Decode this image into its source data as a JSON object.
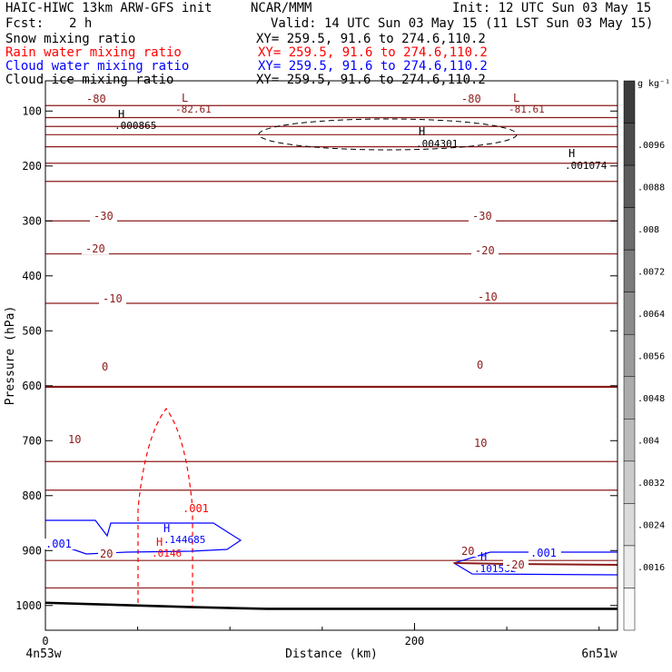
{
  "header": {
    "model": "HAIC-HIWC 13km ARW-GFS init",
    "org": "NCAR/MMM",
    "init": "Init: 12 UTC Sun 03 May 15",
    "fcst_label": "Fcst:",
    "fcst_value": "2 h",
    "valid": "Valid: 14 UTC Sun 03 May 15 (11 LST Sun 03 May 15)"
  },
  "fields": [
    {
      "name": "Snow mixing ratio",
      "xy": "XY= 259.5, 91.6 to 274.6,110.2",
      "color": "#000000"
    },
    {
      "name": "Rain water mixing ratio",
      "xy": "XY= 259.5, 91.6 to 274.6,110.2",
      "color": "#ff0000"
    },
    {
      "name": "Cloud water mixing ratio",
      "xy": "XY= 259.5, 91.6 to 274.6,110.2",
      "color": "#0000ff"
    },
    {
      "name": "Cloud ice mixing ratio",
      "xy": "XY= 259.5, 91.6 to 274.6,110.2",
      "color": "#000000"
    }
  ],
  "colors": {
    "temperature": "#8b1a1a",
    "rain": "#ff0000",
    "cloud_water": "#0000ff",
    "ground": "#000000"
  },
  "chart_data": {
    "type": "cross-section",
    "xlabel": "Distance (km)",
    "ylabel": "Pressure (hPa)",
    "xlim": [
      0,
      310
    ],
    "ylim": [
      1045,
      45
    ],
    "x_ticks": [
      {
        "v": 0,
        "label": "0"
      },
      {
        "v": 200,
        "label": "200"
      }
    ],
    "y_ticks": [
      {
        "v": 100,
        "label": "100"
      },
      {
        "v": 200,
        "label": "200"
      },
      {
        "v": 300,
        "label": "300"
      },
      {
        "v": 400,
        "label": "400"
      },
      {
        "v": 500,
        "label": "500"
      },
      {
        "v": 600,
        "label": "600"
      },
      {
        "v": 700,
        "label": "700"
      },
      {
        "v": 800,
        "label": "800"
      },
      {
        "v": 900,
        "label": "900"
      },
      {
        "v": 1000,
        "label": "1000"
      }
    ],
    "endpoints": {
      "left": "4n53w",
      "right": "6n51w"
    },
    "colorbar": {
      "unit": "g kg⁻¹",
      "labels": [
        ".0096",
        ".0088",
        ".008",
        ".0072",
        ".0064",
        ".0056",
        ".0048",
        ".004",
        ".0032",
        ".0024",
        ".0016"
      ]
    },
    "temperature_contours": [
      {
        "label": "-80",
        "points": [
          [
            0,
            90
          ],
          [
            310,
            90
          ]
        ]
      },
      {
        "label": "-82.61",
        "points": [
          [
            0,
            112
          ],
          [
            310,
            112
          ]
        ]
      },
      {
        "label": "",
        "points": [
          [
            0,
            128
          ],
          [
            310,
            128
          ]
        ]
      },
      {
        "label": "",
        "points": [
          [
            0,
            143
          ],
          [
            310,
            143
          ]
        ]
      },
      {
        "label": "",
        "points": [
          [
            0,
            165
          ],
          [
            310,
            165
          ]
        ]
      },
      {
        "label": "",
        "points": [
          [
            0,
            195
          ],
          [
            310,
            195
          ]
        ]
      },
      {
        "label": "",
        "points": [
          [
            0,
            228
          ],
          [
            310,
            228
          ]
        ]
      },
      {
        "label": "-30",
        "points": [
          [
            0,
            300
          ],
          [
            310,
            300
          ]
        ]
      },
      {
        "label": "-20",
        "points": [
          [
            0,
            360
          ],
          [
            310,
            360
          ]
        ]
      },
      {
        "label": "-10",
        "points": [
          [
            0,
            450
          ],
          [
            310,
            450
          ]
        ]
      },
      {
        "label": "0",
        "points": [
          [
            0,
            602
          ],
          [
            310,
            602
          ]
        ]
      },
      {
        "label": "10",
        "points": [
          [
            0,
            738
          ],
          [
            310,
            738
          ]
        ]
      },
      {
        "label": "",
        "points": [
          [
            0,
            790
          ],
          [
            310,
            790
          ]
        ]
      },
      {
        "label": "20",
        "points": [
          [
            0,
            918
          ],
          [
            310,
            918
          ]
        ]
      },
      {
        "label": "",
        "points": [
          [
            0,
            968
          ],
          [
            310,
            968
          ]
        ]
      }
    ],
    "ground_surface_hPa": 1006,
    "rain_contour": {
      "label": ".001",
      "peak_hPa": 655,
      "x_range_km": [
        50,
        80
      ]
    },
    "cloud_water_contour": {
      "label": ".001",
      "points_km": [
        0,
        100
      ]
    },
    "cloud_ice_contour": {
      "label": "",
      "center_km": 210,
      "center_hPa": 147
    },
    "markers": [
      {
        "x": 40,
        "y": 117,
        "letter": "H",
        "value": ".000865",
        "color": "#000000"
      },
      {
        "x": 75,
        "y": 100,
        "letter": "L",
        "value": "-82.61",
        "color": "#8b1a1a"
      },
      {
        "x": 203,
        "y": 145,
        "letter": "H",
        "value": ".004301",
        "color": "#000000"
      },
      {
        "x": 253,
        "y": 100,
        "letter": "L",
        "value": "-81.61",
        "color": "#8b1a1a"
      },
      {
        "x": 285,
        "y": 165,
        "letter": "H",
        "value": ".001074",
        "color": "#000000"
      },
      {
        "x": 65,
        "y": 883,
        "letter": "H",
        "value": ".144685",
        "color": "#0000ff"
      },
      {
        "x": 60,
        "y": 902,
        "letter": "H",
        "value": ".0146",
        "color": "#ff0000"
      },
      {
        "x": 237,
        "y": 922,
        "letter": "H",
        "value": ".101582",
        "color": "#0000ff"
      }
    ],
    "extra_labels": [
      {
        "x": 80,
        "y": 800,
        "text": ".001",
        "color": "#ff0000"
      },
      {
        "x": 40,
        "y": 905,
        "text": "20",
        "color": "#8b1a1a"
      },
      {
        "x": 0,
        "y": 890,
        "text": ".001",
        "color": "#0000ff"
      },
      {
        "x": 270,
        "y": 908,
        "text": ".001",
        "color": "#0000ff"
      },
      {
        "x": 225,
        "y": 888,
        "text": "20",
        "color": "#8b1a1a"
      },
      {
        "x": 250,
        "y": 920,
        "text": "-20",
        "color": "#8b1a1a"
      }
    ]
  }
}
